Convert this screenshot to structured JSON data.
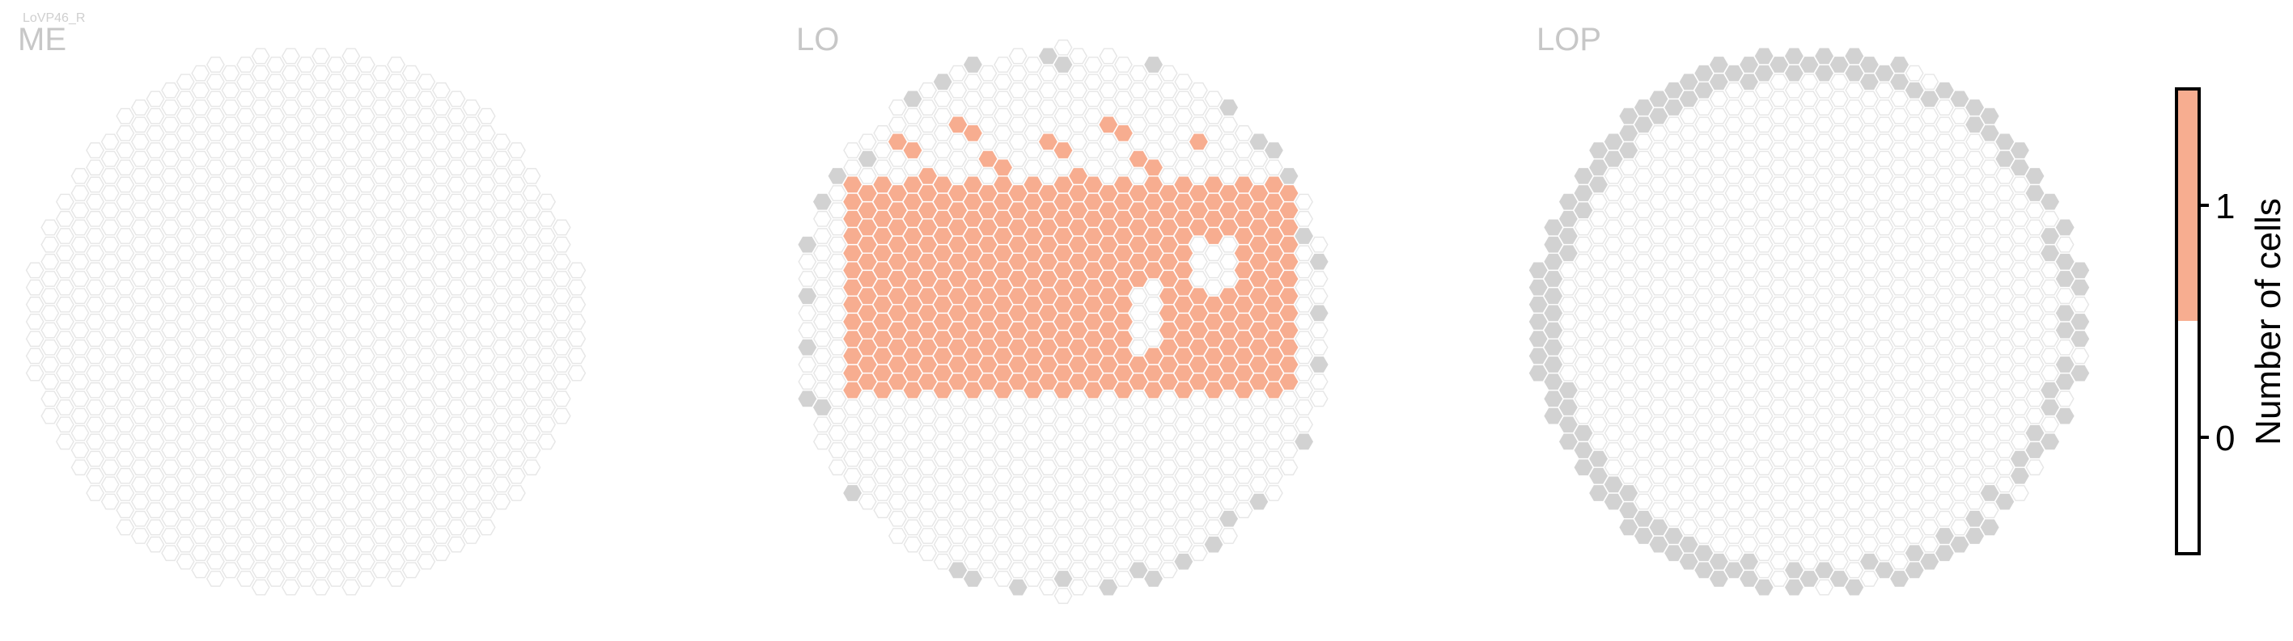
{
  "figure": {
    "tag": "LoVP46_R"
  },
  "colors": {
    "hex_stroke": "#e6e6e6",
    "hex_empty_fill": "#ffffff",
    "hex_outside": "#d2d2d2",
    "hex_one": "#f7ad90",
    "colorbar_zero": "#ffffff",
    "colorbar_one": "#f7ad90"
  },
  "chart_data": {
    "type": "heatmap",
    "title": "",
    "colorbar": {
      "label": "Number of cells",
      "ticks": [
        "0",
        "1"
      ],
      "range": [
        -0.5,
        1.5
      ],
      "bins": [
        {
          "value": 0,
          "color": "#ffffff"
        },
        {
          "value": 1,
          "color": "#f7ad90"
        }
      ]
    },
    "panels": [
      {
        "name": "ME",
        "cells_with_count_1": 0,
        "outside_columns": 0
      },
      {
        "name": "LO",
        "cells_with_count_1": 216,
        "outside_columns": 19
      },
      {
        "name": "LOP",
        "cells_with_count_1": 0,
        "outside_columns": 64
      }
    ]
  }
}
